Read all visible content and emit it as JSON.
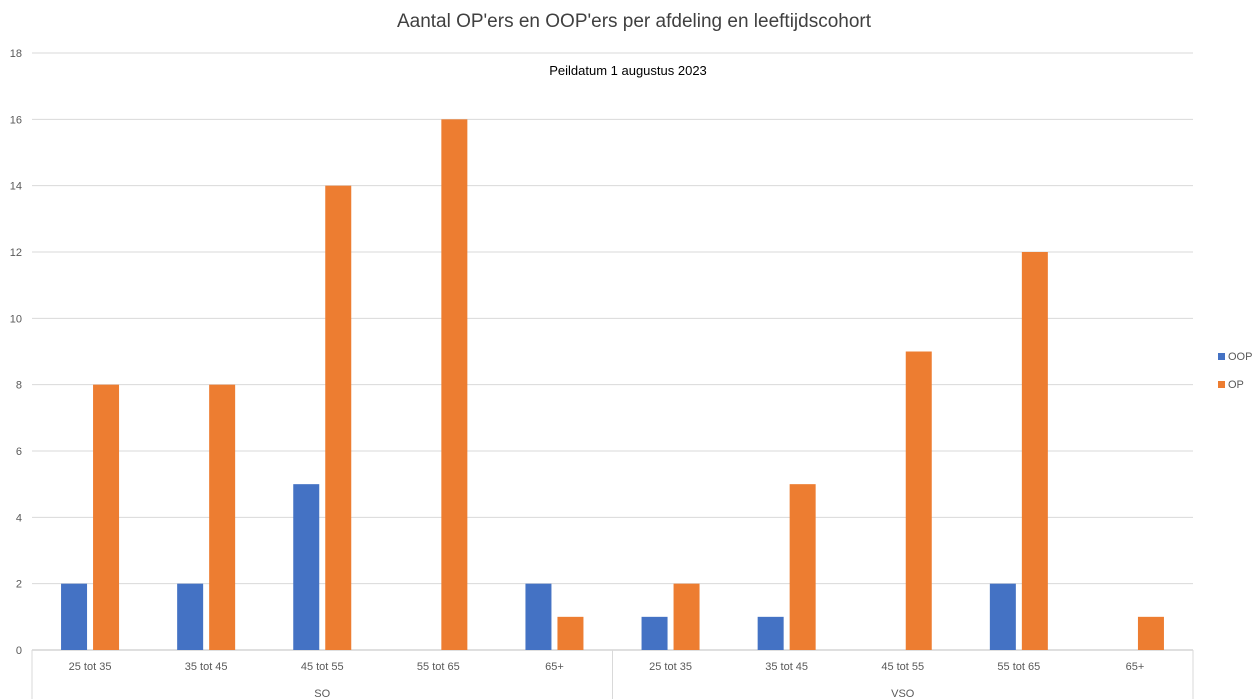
{
  "chart_data": {
    "type": "bar",
    "title": "Aantal OP'ers en OOP'ers per afdeling en leeftijdscohort",
    "subtitle": "Peildatum 1 augustus 2023",
    "xlabel": "",
    "ylabel": "",
    "ylim": [
      0,
      18
    ],
    "yticks": [
      0,
      2,
      4,
      6,
      8,
      10,
      12,
      14,
      16,
      18
    ],
    "grid": true,
    "legend_position": "right",
    "groups": [
      {
        "name": "SO",
        "categories": [
          "25 tot 35",
          "35 tot 45",
          "45 tot 55",
          "55 tot 65",
          "65+"
        ]
      },
      {
        "name": "VSO",
        "categories": [
          "25 tot 35",
          "35 tot 45",
          "45 tot 55",
          "55 tot 65",
          "65+"
        ]
      }
    ],
    "series": [
      {
        "name": "OOP",
        "color": "#4472C4",
        "values": [
          2,
          2,
          5,
          null,
          2,
          1,
          1,
          null,
          2,
          null
        ]
      },
      {
        "name": "OP",
        "color": "#ED7D31",
        "values": [
          8,
          8,
          14,
          16,
          1,
          2,
          5,
          9,
          12,
          1
        ]
      }
    ]
  }
}
